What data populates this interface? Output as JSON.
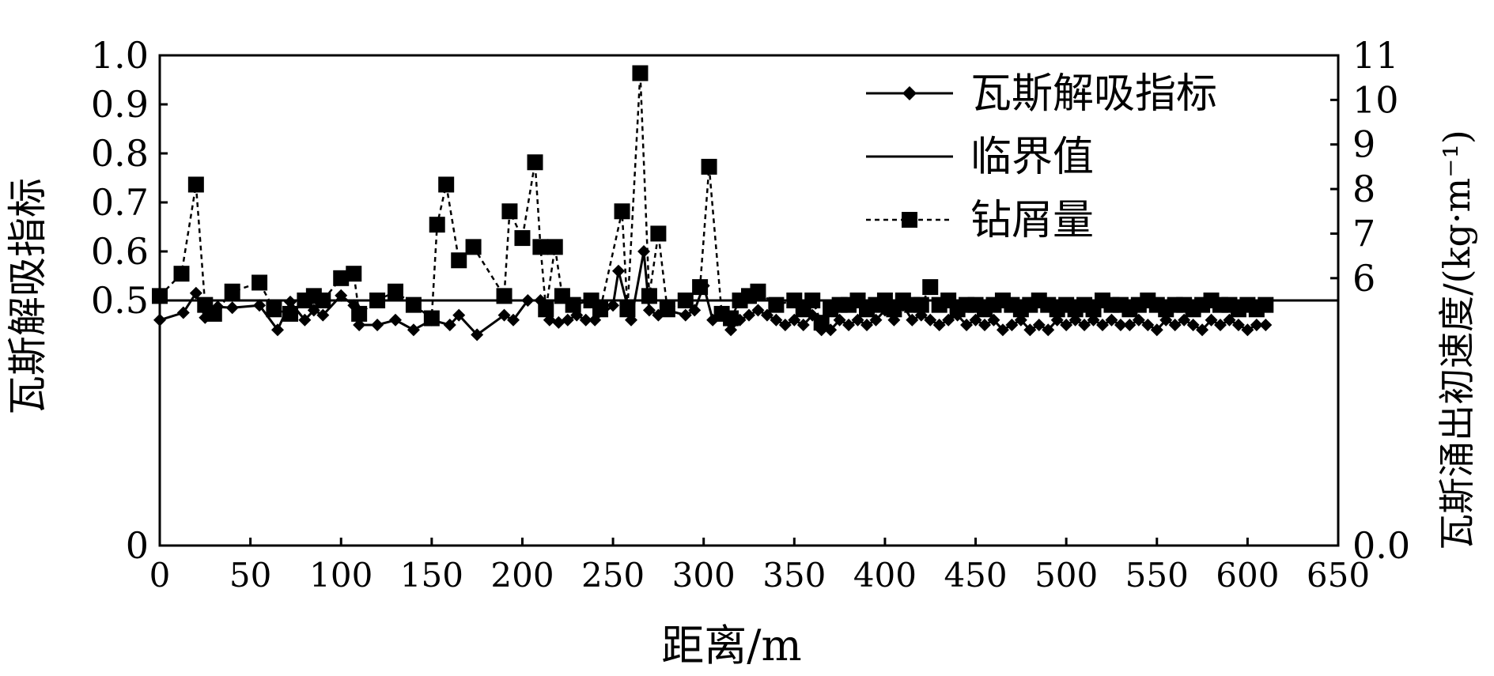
{
  "chart_data": {
    "type": "line",
    "xlabel": "距离/m",
    "ylabel_left": "瓦斯解吸指标",
    "ylabel_right": "瓦斯涌出初速度/(kg·m⁻¹)",
    "xlim": [
      0,
      650
    ],
    "xticks": [
      "0",
      "50",
      "100",
      "150",
      "200",
      "250",
      "300",
      "350",
      "400",
      "450",
      "500",
      "550",
      "600",
      "650"
    ],
    "ylim_left": [
      0,
      1.0
    ],
    "yticks_left": [
      "0",
      "0.5",
      "0.6",
      "0.7",
      "0.8",
      "0.9",
      "1.0"
    ],
    "ylim_right": [
      0,
      11
    ],
    "yticks_right": [
      "0.0",
      "6",
      "7",
      "8",
      "9",
      "10",
      "11"
    ],
    "grid": false,
    "legend_position": "top-right",
    "series": [
      {
        "name": "瓦斯解吸指标",
        "axis": "left",
        "style": "solid-diamond",
        "x": [
          0,
          13,
          20,
          25,
          32,
          40,
          55,
          65,
          72,
          80,
          85,
          90,
          100,
          107,
          110,
          120,
          130,
          140,
          150,
          160,
          165,
          175,
          190,
          195,
          203,
          210,
          215,
          220,
          225,
          230,
          235,
          240,
          250,
          253,
          260,
          267,
          270,
          275,
          280,
          290,
          295,
          300,
          305,
          310,
          315,
          320,
          325,
          330,
          335,
          340,
          345,
          350,
          355,
          360,
          365,
          370,
          375,
          380,
          385,
          390,
          395,
          400,
          405,
          410,
          415,
          420,
          425,
          430,
          435,
          440,
          445,
          450,
          455,
          460,
          465,
          470,
          475,
          480,
          485,
          490,
          495,
          500,
          505,
          510,
          515,
          520,
          525,
          530,
          535,
          540,
          545,
          550,
          555,
          560,
          565,
          570,
          575,
          580,
          585,
          590,
          595,
          600,
          605,
          610
        ],
        "y": [
          0.46,
          0.475,
          0.515,
          0.465,
          0.487,
          0.485,
          0.49,
          0.44,
          0.497,
          0.46,
          0.48,
          0.47,
          0.51,
          0.49,
          0.45,
          0.45,
          0.46,
          0.44,
          0.46,
          0.45,
          0.47,
          0.43,
          0.47,
          0.46,
          0.5,
          0.5,
          0.46,
          0.455,
          0.46,
          0.47,
          0.46,
          0.46,
          0.49,
          0.56,
          0.46,
          0.6,
          0.48,
          0.47,
          0.48,
          0.47,
          0.48,
          0.53,
          0.46,
          0.47,
          0.44,
          0.46,
          0.47,
          0.48,
          0.47,
          0.46,
          0.45,
          0.46,
          0.45,
          0.47,
          0.44,
          0.44,
          0.46,
          0.45,
          0.46,
          0.45,
          0.46,
          0.48,
          0.46,
          0.49,
          0.46,
          0.47,
          0.46,
          0.45,
          0.46,
          0.47,
          0.45,
          0.46,
          0.45,
          0.46,
          0.44,
          0.45,
          0.46,
          0.44,
          0.45,
          0.44,
          0.46,
          0.45,
          0.46,
          0.45,
          0.46,
          0.45,
          0.46,
          0.45,
          0.45,
          0.46,
          0.45,
          0.44,
          0.46,
          0.45,
          0.46,
          0.45,
          0.44,
          0.46,
          0.45,
          0.46,
          0.45,
          0.44,
          0.45,
          0.45
        ]
      },
      {
        "name": "临界值",
        "axis": "left",
        "style": "solid",
        "x": [
          0,
          650
        ],
        "y": [
          0.5,
          0.5
        ]
      },
      {
        "name": "钻屑量",
        "axis": "right",
        "style": "dotted-square",
        "x": [
          0,
          12,
          20,
          25,
          30,
          40,
          55,
          63,
          72,
          80,
          85,
          90,
          100,
          107,
          110,
          120,
          130,
          140,
          150,
          153,
          158,
          165,
          173,
          190,
          193,
          200,
          207,
          210,
          213,
          218,
          222,
          228,
          238,
          243,
          255,
          258,
          265,
          270,
          275,
          280,
          290,
          298,
          303,
          310,
          315,
          320,
          325,
          330,
          340,
          350,
          355,
          360,
          365,
          370,
          375,
          380,
          385,
          390,
          395,
          400,
          405,
          410,
          415,
          420,
          425,
          430,
          435,
          440,
          445,
          450,
          455,
          460,
          465,
          470,
          475,
          480,
          485,
          490,
          495,
          500,
          505,
          510,
          515,
          520,
          525,
          530,
          535,
          540,
          545,
          550,
          555,
          560,
          565,
          570,
          575,
          580,
          585,
          590,
          595,
          600,
          605,
          610
        ],
        "y": [
          5.6,
          6.1,
          8.1,
          5.4,
          5.2,
          5.7,
          5.9,
          5.3,
          5.2,
          5.5,
          5.6,
          5.5,
          6.0,
          6.1,
          5.2,
          5.5,
          5.7,
          5.4,
          5.1,
          7.2,
          8.1,
          6.4,
          6.7,
          5.6,
          7.5,
          6.9,
          8.6,
          6.7,
          5.3,
          6.7,
          5.6,
          5.4,
          5.5,
          5.3,
          7.5,
          5.3,
          10.6,
          5.6,
          7.0,
          5.3,
          5.5,
          5.8,
          8.5,
          5.2,
          5.1,
          5.5,
          5.6,
          5.7,
          5.4,
          5.5,
          5.3,
          5.5,
          5.0,
          5.3,
          5.4,
          5.4,
          5.5,
          5.3,
          5.4,
          5.5,
          5.3,
          5.5,
          5.4,
          5.4,
          5.8,
          5.4,
          5.5,
          5.3,
          5.4,
          5.4,
          5.3,
          5.4,
          5.5,
          5.4,
          5.3,
          5.4,
          5.5,
          5.4,
          5.3,
          5.4,
          5.3,
          5.4,
          5.3,
          5.5,
          5.4,
          5.4,
          5.3,
          5.4,
          5.5,
          5.4,
          5.3,
          5.4,
          5.4,
          5.3,
          5.4,
          5.5,
          5.4,
          5.4,
          5.3,
          5.4,
          5.3,
          5.4
        ]
      }
    ]
  }
}
